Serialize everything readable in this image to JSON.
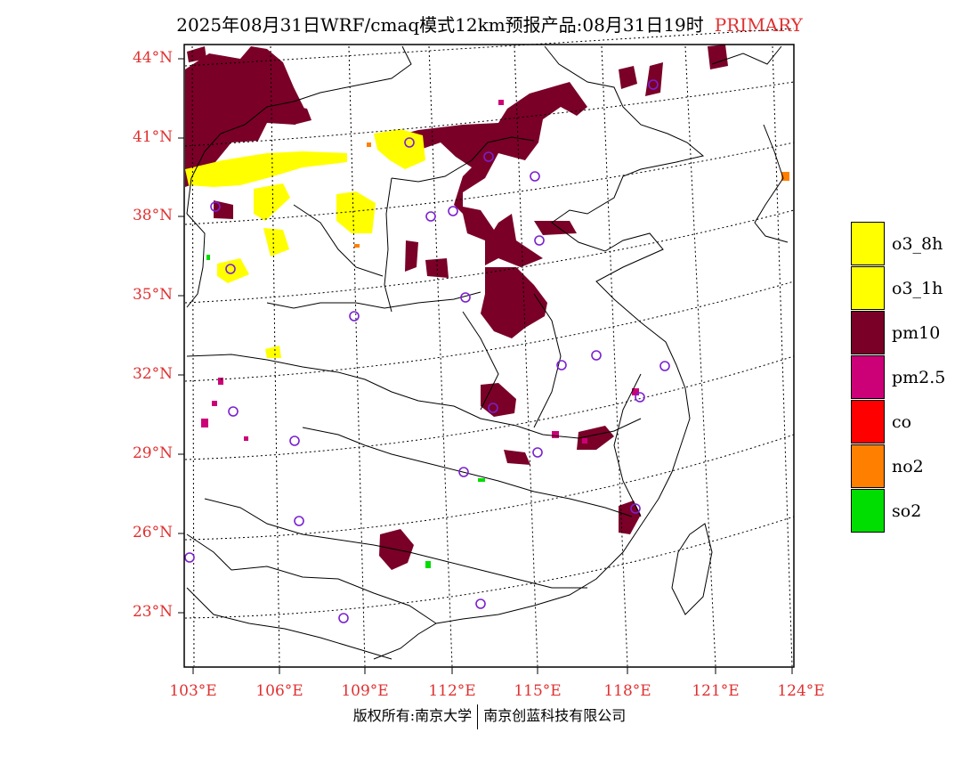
{
  "title": {
    "main": "2025年08月31日WRF/cmaq模式12km预报产品:08月31日19时",
    "tag": "PRIMARY"
  },
  "axes": {
    "lat_labels": [
      "44°N",
      "41°N",
      "38°N",
      "35°N",
      "32°N",
      "29°N",
      "26°N",
      "23°N"
    ],
    "lon_labels": [
      "103°E",
      "106°E",
      "109°E",
      "112°E",
      "115°E",
      "118°E",
      "121°E",
      "124°E"
    ]
  },
  "legend": [
    {
      "label": "o3_8h",
      "color": "#ffff00"
    },
    {
      "label": "o3_1h",
      "color": "#ffff00"
    },
    {
      "label": "pm10",
      "color": "#7a0028"
    },
    {
      "label": "pm2.5",
      "color": "#cc0077"
    },
    {
      "label": "co",
      "color": "#ff0000"
    },
    {
      "label": "no2",
      "color": "#ff8000"
    },
    {
      "label": "so2",
      "color": "#00dd00"
    }
  ],
  "footer": {
    "left": "版权所有:南京大学",
    "right": "南京创蓝科技有限公司"
  }
}
